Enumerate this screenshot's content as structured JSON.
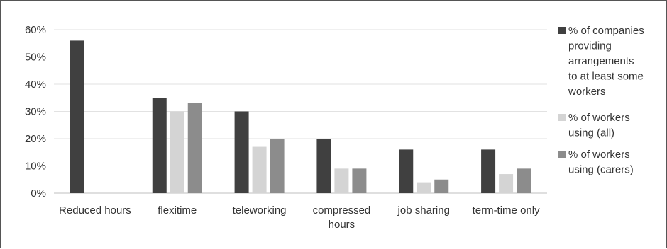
{
  "chart_data": {
    "type": "bar",
    "title": "",
    "xlabel": "",
    "ylabel": "",
    "ylim": [
      0,
      0.6
    ],
    "yticks": [
      "0%",
      "10%",
      "20%",
      "30%",
      "40%",
      "50%",
      "60%"
    ],
    "grid": true,
    "legend_position": "right",
    "categories": [
      [
        "Reduced hours"
      ],
      [
        "flexitime"
      ],
      [
        "teleworking"
      ],
      [
        "compressed",
        "hours"
      ],
      [
        "job sharing"
      ],
      [
        "term-time only"
      ]
    ],
    "series": [
      {
        "name": [
          "% of companies",
          "providing",
          "arrangements",
          "to at least some",
          "workers"
        ],
        "color": "#404040",
        "values": [
          0.56,
          0.35,
          0.3,
          0.2,
          0.16,
          0.16
        ]
      },
      {
        "name": [
          "% of workers",
          "using (all)"
        ],
        "color": "#d4d4d4",
        "values": [
          null,
          0.3,
          0.17,
          0.09,
          0.04,
          0.07
        ]
      },
      {
        "name": [
          "% of workers",
          "using (carers)"
        ],
        "color": "#8c8c8c",
        "values": [
          null,
          0.33,
          0.2,
          0.09,
          0.05,
          0.09
        ]
      }
    ]
  }
}
